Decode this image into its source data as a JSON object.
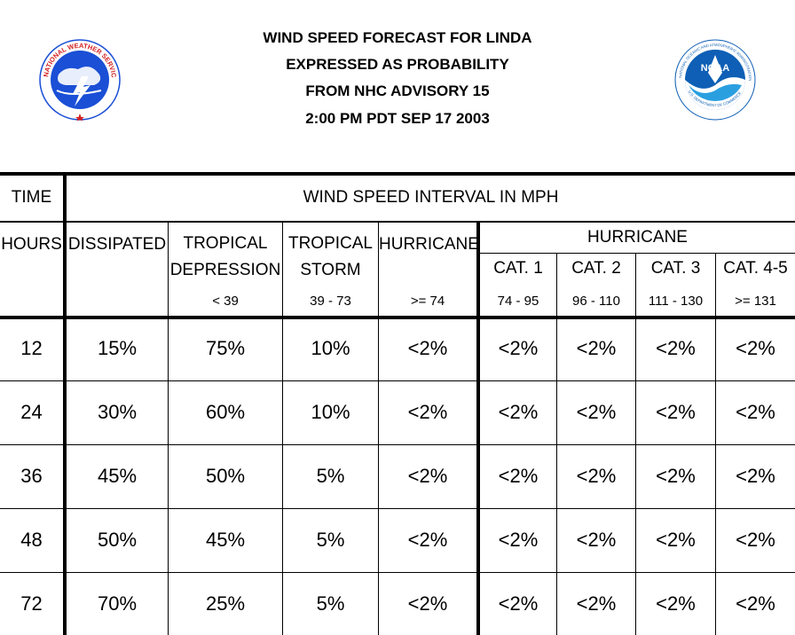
{
  "header": {
    "title_lines": [
      "WIND SPEED FORECAST FOR LINDA",
      "EXPRESSED AS PROBABILITY",
      "FROM NHC ADVISORY   15",
      "2:00 PM PDT SEP 17 2003"
    ]
  },
  "logos": {
    "left": {
      "name": "nws-logo",
      "text": "NATIONAL WEATHER SERVICE"
    },
    "right": {
      "name": "noaa-logo",
      "center_text": "NOAA",
      "ring_text": "NATIONAL OCEANIC AND ATMOSPHERIC ADMINISTRATION · U.S. DEPARTMENT OF COMMERCE"
    }
  },
  "table": {
    "time_label": "TIME",
    "interval_label": "WIND SPEED INTERVAL IN MPH",
    "hours_label": "HOURS",
    "columns": {
      "dissipated": {
        "label": "DISSIPATED"
      },
      "td": {
        "label1": "TROPICAL",
        "label2": "DEPRESSION",
        "range": "< 39"
      },
      "ts": {
        "label1": "TROPICAL",
        "label2": "STORM",
        "range": "39 - 73"
      },
      "hu": {
        "label": "HURRICANE",
        "range": ">= 74"
      },
      "hurricane_group": "HURRICANE",
      "cats": [
        {
          "label": "CAT. 1",
          "range": "74 - 95"
        },
        {
          "label": "CAT. 2",
          "range": "96 - 110"
        },
        {
          "label": "CAT. 3",
          "range": "111 - 130"
        },
        {
          "label": "CAT. 4-5",
          "range": ">= 131"
        }
      ]
    },
    "rows": [
      {
        "hours": "12",
        "values": [
          "15%",
          "75%",
          "10%",
          "<2%",
          "<2%",
          "<2%",
          "<2%",
          "<2%"
        ]
      },
      {
        "hours": "24",
        "values": [
          "30%",
          "60%",
          "10%",
          "<2%",
          "<2%",
          "<2%",
          "<2%",
          "<2%"
        ]
      },
      {
        "hours": "36",
        "values": [
          "45%",
          "50%",
          "5%",
          "<2%",
          "<2%",
          "<2%",
          "<2%",
          "<2%"
        ]
      },
      {
        "hours": "48",
        "values": [
          "50%",
          "45%",
          "5%",
          "<2%",
          "<2%",
          "<2%",
          "<2%",
          "<2%"
        ]
      },
      {
        "hours": "72",
        "values": [
          "70%",
          "25%",
          "5%",
          "<2%",
          "<2%",
          "<2%",
          "<2%",
          "<2%"
        ]
      }
    ]
  },
  "colors": {
    "nws_blue": "#1a4fd6",
    "nws_red": "#d42020",
    "noaa_blue": "#0e5fb5",
    "noaa_light": "#2a9fe0"
  }
}
